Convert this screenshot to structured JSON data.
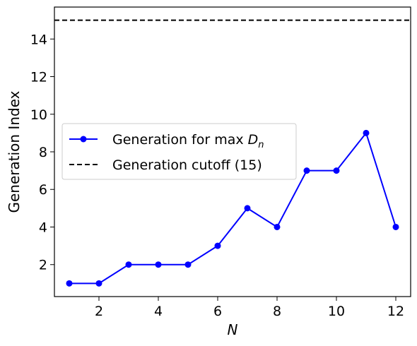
{
  "chart_data": {
    "type": "line",
    "xlabel": "N",
    "ylabel": "Generation Index",
    "xlim": [
      0.5,
      12.5
    ],
    "ylim": [
      0.3,
      15.7
    ],
    "xticks": [
      2,
      4,
      6,
      8,
      10,
      12
    ],
    "yticks": [
      2,
      4,
      6,
      8,
      10,
      12,
      14
    ],
    "grid": false,
    "legend_position": "center-left",
    "series": [
      {
        "name": "Generation for max D_n",
        "color": "#0000ff",
        "marker": "circle",
        "x": [
          1,
          2,
          3,
          4,
          5,
          6,
          7,
          8,
          9,
          10,
          11,
          12
        ],
        "y": [
          1,
          1,
          2,
          2,
          2,
          3,
          5,
          4,
          7,
          7,
          9,
          4
        ]
      }
    ],
    "reference_lines": [
      {
        "name": "Generation cutoff (15)",
        "orientation": "horizontal",
        "y": 15,
        "color": "#000000",
        "style": "dashed"
      }
    ],
    "legend": {
      "entries": [
        {
          "label_prefix": "Generation for max ",
          "label_math": "D",
          "label_sub": "n"
        },
        {
          "label": "Generation cutoff (15)"
        }
      ]
    }
  }
}
